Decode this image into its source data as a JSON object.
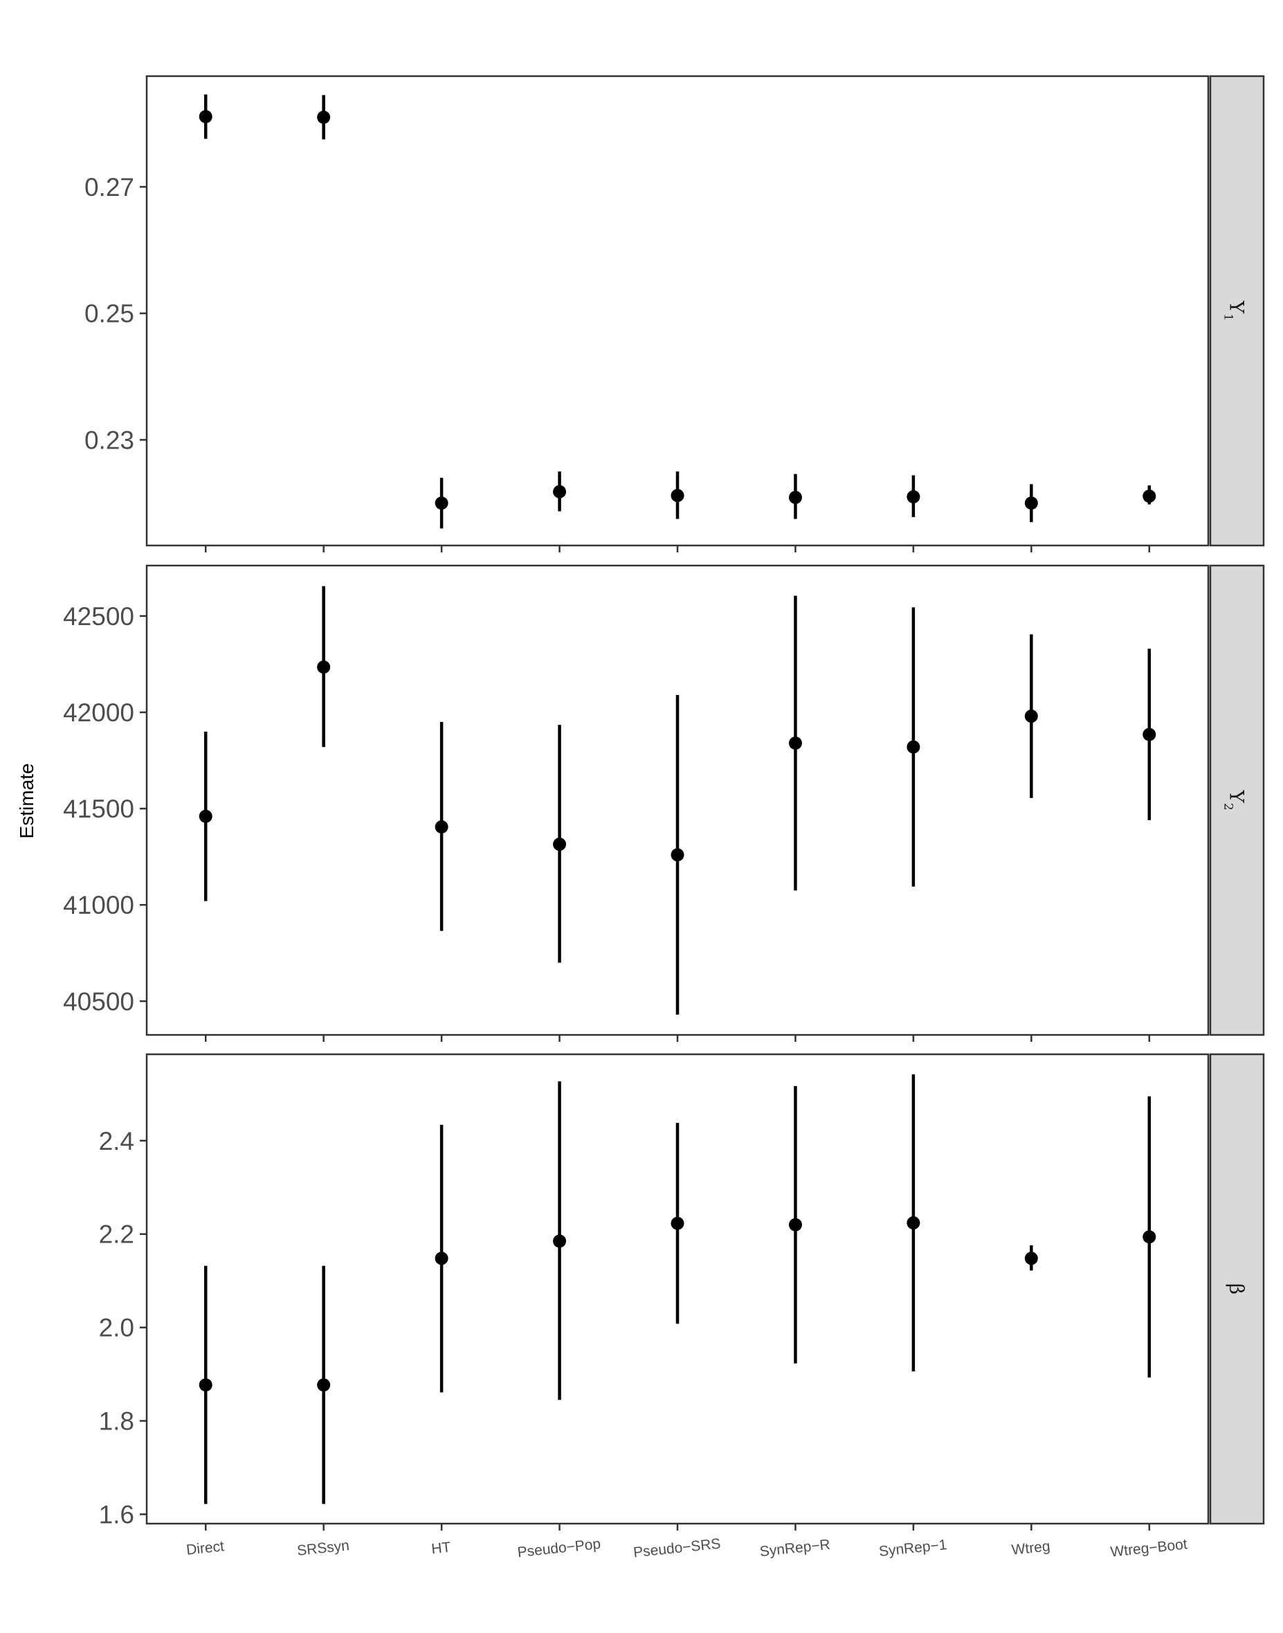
{
  "chart_data": {
    "type": "scatter",
    "subtype": "point-range",
    "ylabel": "Estimate",
    "categories": [
      "Direct",
      "SRSsyn",
      "HT",
      "Pseudo−Pop",
      "Pseudo−SRS",
      "SynRep−R",
      "SynRep−1",
      "Wtreg",
      "Wtreg−Boot"
    ],
    "grid": false,
    "facets": [
      {
        "strip_main": "Y",
        "strip_sub": "1",
        "ylim": [
          0.2133,
          0.2875
        ],
        "ticks": [
          0.23,
          0.25,
          0.27
        ],
        "tick_labels": [
          "0.23",
          "0.25",
          "0.27"
        ],
        "estimates": [
          0.2811,
          0.281,
          0.22,
          0.2218,
          0.2212,
          0.2209,
          0.221,
          0.22,
          0.2211
        ],
        "lower": [
          0.2776,
          0.2775,
          0.216,
          0.2187,
          0.2175,
          0.2175,
          0.2178,
          0.217,
          0.2198
        ],
        "upper": [
          0.2846,
          0.2845,
          0.224,
          0.225,
          0.225,
          0.2246,
          0.2244,
          0.223,
          0.2228
        ]
      },
      {
        "strip_main": "Y",
        "strip_sub": "2",
        "ylim": [
          40325,
          42762
        ],
        "ticks": [
          40500,
          41000,
          41500,
          42000,
          42500
        ],
        "tick_labels": [
          "40500",
          "41000",
          "41500",
          "42000",
          "42500"
        ],
        "estimates": [
          41460,
          42235,
          41405,
          41315,
          41260,
          41840,
          41820,
          41980,
          41885
        ],
        "lower": [
          41020,
          41820,
          40865,
          40700,
          40430,
          41075,
          41095,
          41555,
          41440
        ],
        "upper": [
          41900,
          42655,
          41950,
          41935,
          42090,
          42605,
          42545,
          42405,
          42330
        ]
      },
      {
        "strip_main": "β",
        "strip_sub": "",
        "ylim": [
          1.58,
          2.585
        ],
        "ticks": [
          1.6,
          1.8,
          2.0,
          2.2,
          2.4
        ],
        "tick_labels": [
          "1.6",
          "1.8",
          "2.0",
          "2.2",
          "2.4"
        ],
        "estimates": [
          1.877,
          1.877,
          2.148,
          2.185,
          2.223,
          2.22,
          2.224,
          2.148,
          2.194
        ],
        "lower": [
          1.622,
          1.622,
          1.861,
          1.845,
          2.008,
          1.923,
          1.906,
          2.122,
          1.893
        ],
        "upper": [
          2.132,
          2.132,
          2.434,
          2.527,
          2.438,
          2.517,
          2.542,
          2.176,
          2.495
        ]
      }
    ]
  },
  "colors": {
    "point": "#000000",
    "panel_border": "#333333",
    "strip_fill": "#d9d9d9",
    "tick_label": "#4d4d4d",
    "background": "#ffffff"
  }
}
